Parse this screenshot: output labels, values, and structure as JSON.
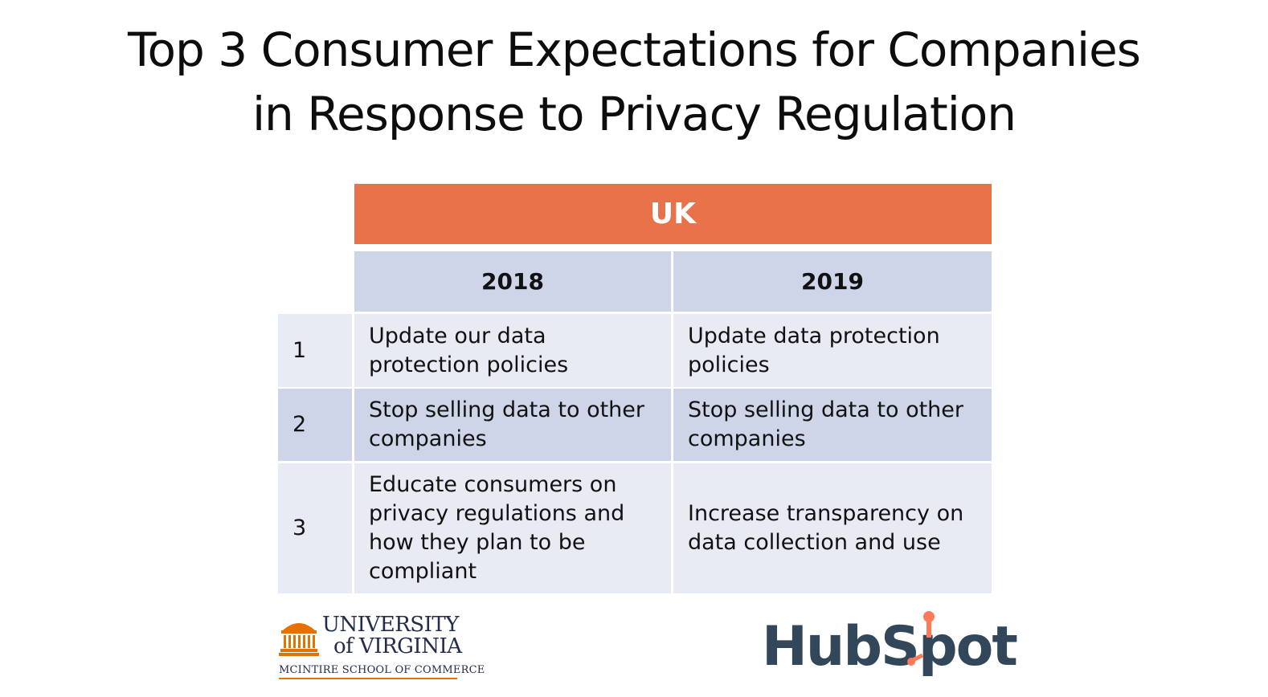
{
  "title": {
    "line1": "Top 3 Consumer Expectations for Companies",
    "line2": "in Response to Privacy Regulation"
  },
  "table": {
    "region": "UK",
    "columns": [
      "2018",
      "2019"
    ],
    "rows": [
      {
        "rank": "1",
        "y2018": "Update our data protection policies",
        "y2019": "Update data protection policies"
      },
      {
        "rank": "2",
        "y2018": "Stop selling data to other companies",
        "y2019": "Stop selling data to other companies"
      },
      {
        "rank": "3",
        "y2018": "Educate consumers on privacy regulations and how they plan to be compliant",
        "y2019": "Increase transparency on data collection and use"
      }
    ]
  },
  "logos": {
    "uva": {
      "line1": "UNIVERSITY",
      "line2": "of VIRGINIA",
      "school": "MCINTIRE SCHOOL OF COMMERCE"
    },
    "hubspot": {
      "wordmark": "HubSpot"
    }
  },
  "colors": {
    "header_orange": "#e8734a",
    "cell_dark": "#cfd5e8",
    "cell_light": "#e8ebf4",
    "uva_navy": "#232d4b",
    "uva_orange": "#e57200",
    "hubspot_slate": "#33475b",
    "hubspot_orange": "#ff7a59"
  }
}
